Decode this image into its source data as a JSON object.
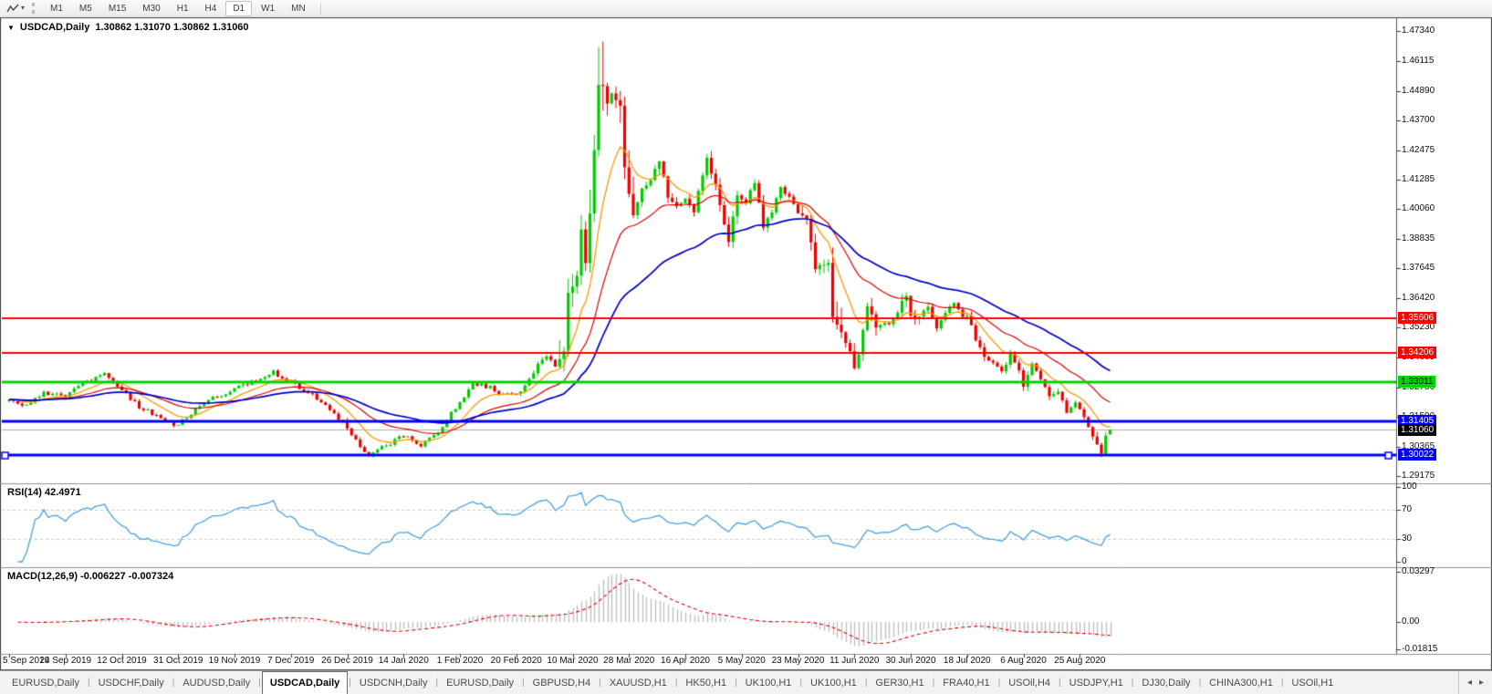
{
  "toolbar": {
    "timeframes": [
      "M1",
      "M5",
      "M15",
      "M30",
      "H1",
      "H4",
      "D1",
      "W1",
      "MN"
    ],
    "active_timeframe": "D1"
  },
  "title": {
    "marker": "▼",
    "symbol_label": "USDCAD,Daily",
    "values": "1.30862 1.31070 1.30862 1.31060"
  },
  "price_axis": {
    "ticks": [
      {
        "label": "1.47340",
        "value": 1.4734
      },
      {
        "label": "1.46115",
        "value": 1.46115
      },
      {
        "label": "1.44890",
        "value": 1.4489
      },
      {
        "label": "1.43700",
        "value": 1.437
      },
      {
        "label": "1.42475",
        "value": 1.42475
      },
      {
        "label": "1.41285",
        "value": 1.41285
      },
      {
        "label": "1.40060",
        "value": 1.4006
      },
      {
        "label": "1.38835",
        "value": 1.38835
      },
      {
        "label": "1.37645",
        "value": 1.37645
      },
      {
        "label": "1.36420",
        "value": 1.3642
      },
      {
        "label": "1.35230",
        "value": 1.3523
      },
      {
        "label": "1.34005",
        "value": 1.34005
      },
      {
        "label": "1.32780",
        "value": 1.3278
      },
      {
        "label": "1.31590",
        "value": 1.3159
      },
      {
        "label": "1.30365",
        "value": 1.30365
      },
      {
        "label": "1.29175",
        "value": 1.29175
      }
    ]
  },
  "rsi_panel": {
    "label": "RSI(14) 42.4971",
    "ticks": [
      {
        "label": "100",
        "value": 100
      },
      {
        "label": "70",
        "value": 70
      },
      {
        "label": "30",
        "value": 30
      },
      {
        "label": "0",
        "value": 0
      }
    ],
    "dashed_levels": [
      70,
      30
    ]
  },
  "macd_panel": {
    "label": "MACD(12,26,9) -0.006227 -0.007324",
    "ticks": [
      {
        "label": "0.03297",
        "value": 0.03297
      },
      {
        "label": "0.00",
        "value": 0
      },
      {
        "label": "-0.01815",
        "value": -0.01815
      }
    ]
  },
  "x_axis": [
    {
      "i": 0,
      "label": "5 Sep 2019"
    },
    {
      "i": 13,
      "label": "24 Sep 2019"
    },
    {
      "i": 26,
      "label": "12 Oct 2019"
    },
    {
      "i": 39,
      "label": "31 Oct 2019"
    },
    {
      "i": 52,
      "label": "19 Nov 2019"
    },
    {
      "i": 65,
      "label": "7 Dec 2019"
    },
    {
      "i": 78,
      "label": "26 Dec 2019"
    },
    {
      "i": 91,
      "label": "14 Jan 2020"
    },
    {
      "i": 104,
      "label": "1 Feb 2020"
    },
    {
      "i": 117,
      "label": "20 Feb 2020"
    },
    {
      "i": 130,
      "label": "10 Mar 2020"
    },
    {
      "i": 143,
      "label": "28 Mar 2020"
    },
    {
      "i": 156,
      "label": "16 Apr 2020"
    },
    {
      "i": 169,
      "label": "5 May 2020"
    },
    {
      "i": 182,
      "label": "23 May 2020"
    },
    {
      "i": 195,
      "label": "11 Jun 2020"
    },
    {
      "i": 208,
      "label": "30 Jun 2020"
    },
    {
      "i": 221,
      "label": "18 Jul 2020"
    },
    {
      "i": 234,
      "label": "6 Aug 2020"
    },
    {
      "i": 247,
      "label": "25 Aug 2020"
    }
  ],
  "tabs": [
    {
      "label": "EURUSD,Daily",
      "active": false
    },
    {
      "label": "USDCHF,Daily",
      "active": false
    },
    {
      "label": "AUDUSD,Daily",
      "active": false
    },
    {
      "label": "USDCAD,Daily",
      "active": true
    },
    {
      "label": "USDCNH,Daily",
      "active": false
    },
    {
      "label": "EURUSD,Daily",
      "active": false
    },
    {
      "label": "GBPUSD,H4",
      "active": false
    },
    {
      "label": "XAUUSD,H1",
      "active": false
    },
    {
      "label": "HK50,H1",
      "active": false
    },
    {
      "label": "UK100,H1",
      "active": false
    },
    {
      "label": "UK100,H1",
      "active": false
    },
    {
      "label": "GER30,H1",
      "active": false
    },
    {
      "label": "FRA40,H1",
      "active": false
    },
    {
      "label": "USOil,H4",
      "active": false
    },
    {
      "label": "USDJPY,H1",
      "active": false
    },
    {
      "label": "DJ30,Daily",
      "active": false
    },
    {
      "label": "CHINA300,H1",
      "active": false
    },
    {
      "label": "USOil,H1",
      "active": false
    }
  ],
  "tab_arrows": {
    "left": "◂",
    "right": "▸"
  },
  "chart_data": {
    "type": "candlestick",
    "symbol": "USDCAD",
    "timeframe": "Daily",
    "displayed_ohlc": {
      "open": 1.30862,
      "high": 1.3107,
      "low": 1.30862,
      "close": 1.3106
    },
    "price_range": {
      "top": 1.4782,
      "bottom": 1.2887
    },
    "candle_count": 255,
    "colors": {
      "up": "#00CC00",
      "down": "#EE0000",
      "current_line": "#ADADAD",
      "current_box": "#000000"
    },
    "close_waypoints": [
      [
        0,
        1.323
      ],
      [
        4,
        1.3205
      ],
      [
        8,
        1.3255
      ],
      [
        13,
        1.324
      ],
      [
        18,
        1.3305
      ],
      [
        22,
        1.333
      ],
      [
        26,
        1.327
      ],
      [
        30,
        1.32
      ],
      [
        34,
        1.3165
      ],
      [
        38,
        1.3115
      ],
      [
        42,
        1.3175
      ],
      [
        47,
        1.3235
      ],
      [
        52,
        1.327
      ],
      [
        57,
        1.331
      ],
      [
        61,
        1.334
      ],
      [
        65,
        1.33
      ],
      [
        70,
        1.325
      ],
      [
        74,
        1.3185
      ],
      [
        78,
        1.312
      ],
      [
        81,
        1.303
      ],
      [
        83,
        1.2998
      ],
      [
        86,
        1.303
      ],
      [
        91,
        1.308
      ],
      [
        95,
        1.3045
      ],
      [
        99,
        1.31
      ],
      [
        104,
        1.322
      ],
      [
        107,
        1.329
      ],
      [
        111,
        1.328
      ],
      [
        114,
        1.325
      ],
      [
        117,
        1.3245
      ],
      [
        120,
        1.331
      ],
      [
        122,
        1.338
      ],
      [
        124,
        1.3405
      ],
      [
        126,
        1.3365
      ],
      [
        128,
        1.342
      ],
      [
        129,
        1.366
      ],
      [
        131,
        1.373
      ],
      [
        132,
        1.392
      ],
      [
        133,
        1.379
      ],
      [
        134,
        1.399
      ],
      [
        135,
        1.424
      ],
      [
        136,
        1.451
      ],
      [
        137,
        1.4515
      ],
      [
        138,
        1.443
      ],
      [
        139,
        1.448
      ],
      [
        141,
        1.442
      ],
      [
        142,
        1.4185
      ],
      [
        143,
        1.406
      ],
      [
        144,
        1.399
      ],
      [
        146,
        1.409
      ],
      [
        148,
        1.413
      ],
      [
        150,
        1.421
      ],
      [
        152,
        1.406
      ],
      [
        154,
        1.401
      ],
      [
        156,
        1.404
      ],
      [
        158,
        1.4
      ],
      [
        160,
        1.415
      ],
      [
        161,
        1.4215
      ],
      [
        163,
        1.41
      ],
      [
        165,
        1.395
      ],
      [
        166,
        1.388
      ],
      [
        168,
        1.406
      ],
      [
        170,
        1.403
      ],
      [
        172,
        1.412
      ],
      [
        174,
        1.393
      ],
      [
        176,
        1.4
      ],
      [
        178,
        1.41
      ],
      [
        180,
        1.405
      ],
      [
        182,
        1.399
      ],
      [
        184,
        1.396
      ],
      [
        186,
        1.377
      ],
      [
        189,
        1.378
      ],
      [
        190,
        1.357
      ],
      [
        192,
        1.35
      ],
      [
        194,
        1.342
      ],
      [
        195,
        1.3365
      ],
      [
        196,
        1.342
      ],
      [
        198,
        1.361
      ],
      [
        200,
        1.353
      ],
      [
        203,
        1.354
      ],
      [
        205,
        1.359
      ],
      [
        207,
        1.366
      ],
      [
        208,
        1.358
      ],
      [
        210,
        1.356
      ],
      [
        212,
        1.361
      ],
      [
        214,
        1.352
      ],
      [
        216,
        1.359
      ],
      [
        218,
        1.362
      ],
      [
        220,
        1.357
      ],
      [
        221,
        1.358
      ],
      [
        223,
        1.347
      ],
      [
        225,
        1.341
      ],
      [
        227,
        1.338
      ],
      [
        229,
        1.334
      ],
      [
        231,
        1.3415
      ],
      [
        233,
        1.334
      ],
      [
        234,
        1.329
      ],
      [
        236,
        1.338
      ],
      [
        238,
        1.332
      ],
      [
        240,
        1.3235
      ],
      [
        242,
        1.3265
      ],
      [
        244,
        1.318
      ],
      [
        246,
        1.321
      ],
      [
        247,
        1.3185
      ],
      [
        249,
        1.3125
      ],
      [
        251,
        1.304
      ],
      [
        252,
        1.301
      ],
      [
        253,
        1.3086
      ],
      [
        254,
        1.3106
      ]
    ],
    "overrides": {
      "highs": [
        [
          136,
          1.4668
        ],
        [
          137,
          1.469
        ]
      ],
      "lows": [
        [
          252,
          1.2994
        ]
      ],
      "last_candle": {
        "open": 1.30862,
        "high": 1.3107,
        "low": 1.30862,
        "close": 1.3106
      }
    },
    "moving_averages": [
      {
        "period": 10,
        "color": "#FF9900",
        "width": 1.3
      },
      {
        "period": 25,
        "color": "#E00000",
        "width": 1.2
      },
      {
        "period": 50,
        "color": "#0000C8",
        "width": 1.7
      }
    ],
    "horizontal_lines": [
      {
        "label": "1.35606",
        "value": 1.35606,
        "color": "#FF0000",
        "text_color": "#FFFFFF",
        "width": 2,
        "handles": false
      },
      {
        "label": "1.34206",
        "value": 1.34206,
        "color": "#FF0000",
        "text_color": "#FFFFFF",
        "width": 2,
        "handles": false
      },
      {
        "label": "1.33011",
        "value": 1.33011,
        "color": "#00D500",
        "text_color": "#000000",
        "width": 3,
        "handles": false
      },
      {
        "label": "1.31405",
        "value": 1.31405,
        "color": "#0000FF",
        "text_color": "#FFFFFF",
        "width": 3,
        "handles": false
      },
      {
        "label": "1.30022",
        "value": 1.30022,
        "color": "#0000FF",
        "text_color": "#FFFFFF",
        "width": 3,
        "handles": true
      }
    ],
    "current_price": {
      "label": "1.31060",
      "value": 1.3106
    },
    "indicators": {
      "rsi": {
        "period": 14,
        "value": 42.4971,
        "color": "#4C9FE0",
        "scale": [
          0,
          100
        ],
        "levels": [
          70,
          30
        ]
      },
      "macd": {
        "fast": 12,
        "slow": 26,
        "signal": 9,
        "value": -0.006227,
        "signal_value": -0.007324,
        "range": [
          -0.0185,
          0.033
        ],
        "hist_color": "#BDBDBD",
        "signal_color": "#DD0000"
      }
    }
  }
}
